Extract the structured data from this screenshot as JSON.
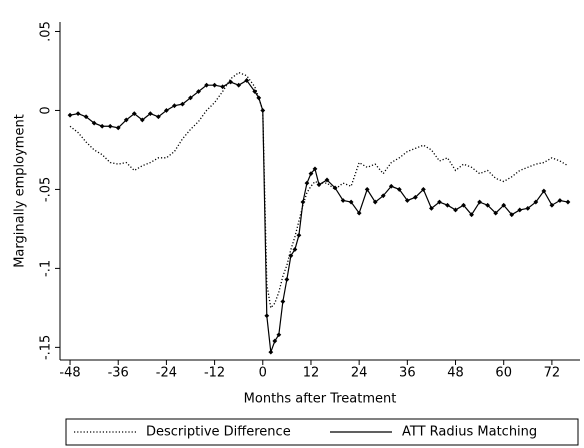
{
  "chart_data": {
    "type": "line",
    "x_label": "Months after Treatment",
    "y_label": "Marginally employment",
    "x": [
      -48,
      -46,
      -44,
      -42,
      -40,
      -38,
      -36,
      -34,
      -32,
      -30,
      -28,
      -26,
      -24,
      -22,
      -20,
      -18,
      -16,
      -14,
      -12,
      -10,
      -8,
      -6,
      -4,
      -2,
      -1,
      0,
      1,
      2,
      3,
      4,
      5,
      6,
      7,
      8,
      9,
      10,
      11,
      12,
      13,
      14,
      16,
      18,
      20,
      22,
      24,
      26,
      28,
      30,
      32,
      34,
      36,
      38,
      40,
      42,
      44,
      46,
      48,
      50,
      52,
      54,
      56,
      58,
      60,
      62,
      64,
      66,
      68,
      70,
      72,
      74,
      76
    ],
    "series": [
      {
        "name": "Descriptive Difference",
        "color": "#000000",
        "dash": "dotted",
        "marker": "none",
        "values": [
          -0.01,
          -0.014,
          -0.02,
          -0.025,
          -0.028,
          -0.033,
          -0.034,
          -0.033,
          -0.038,
          -0.035,
          -0.033,
          -0.03,
          -0.03,
          -0.026,
          -0.018,
          -0.012,
          -0.007,
          0.0,
          0.005,
          0.012,
          0.02,
          0.024,
          0.022,
          0.015,
          0.008,
          0.0,
          -0.11,
          -0.125,
          -0.122,
          -0.115,
          -0.105,
          -0.098,
          -0.088,
          -0.08,
          -0.07,
          -0.06,
          -0.052,
          -0.048,
          -0.045,
          -0.046,
          -0.046,
          -0.05,
          -0.046,
          -0.048,
          -0.033,
          -0.036,
          -0.034,
          -0.04,
          -0.033,
          -0.03,
          -0.026,
          -0.024,
          -0.022,
          -0.025,
          -0.032,
          -0.03,
          -0.038,
          -0.034,
          -0.036,
          -0.04,
          -0.038,
          -0.043,
          -0.045,
          -0.042,
          -0.038,
          -0.036,
          -0.034,
          -0.033,
          -0.03,
          -0.032,
          -0.035
        ]
      },
      {
        "name": "ATT Radius Matching",
        "color": "#000000",
        "dash": "solid",
        "marker": "diamond",
        "values": [
          -0.003,
          -0.002,
          -0.004,
          -0.008,
          -0.01,
          -0.01,
          -0.011,
          -0.006,
          -0.002,
          -0.006,
          -0.002,
          -0.004,
          0.0,
          0.003,
          0.004,
          0.008,
          0.012,
          0.016,
          0.016,
          0.015,
          0.018,
          0.016,
          0.019,
          0.012,
          0.008,
          0.0,
          -0.13,
          -0.153,
          -0.146,
          -0.142,
          -0.121,
          -0.107,
          -0.092,
          -0.088,
          -0.079,
          -0.058,
          -0.046,
          -0.04,
          -0.037,
          -0.047,
          -0.044,
          -0.049,
          -0.057,
          -0.058,
          -0.065,
          -0.05,
          -0.058,
          -0.054,
          -0.048,
          -0.05,
          -0.057,
          -0.055,
          -0.05,
          -0.062,
          -0.058,
          -0.06,
          -0.063,
          -0.06,
          -0.066,
          -0.058,
          -0.06,
          -0.065,
          -0.06,
          -0.066,
          -0.063,
          -0.062,
          -0.058,
          -0.051,
          -0.06,
          -0.057,
          -0.058
        ]
      }
    ],
    "xlim": [
      -50.5,
      79
    ],
    "ylim": [
      -0.158,
      0.056
    ],
    "xticks": [
      -48,
      -36,
      -24,
      -12,
      0,
      12,
      24,
      36,
      48,
      60,
      72
    ],
    "yticks": [
      {
        "value": 0.05,
        "label": ".05"
      },
      0,
      {
        "value": -0.05,
        "label": "-.05"
      },
      {
        "value": -0.1,
        "label": "-.1"
      },
      {
        "value": -0.15,
        "label": "-.15"
      }
    ],
    "grid": false,
    "legend": "bottom"
  }
}
